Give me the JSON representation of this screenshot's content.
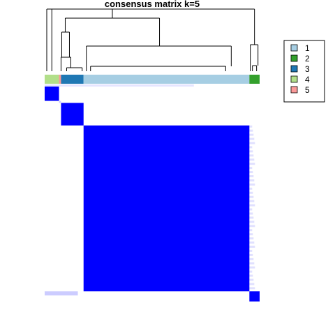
{
  "chart_data": {
    "type": "heatmap",
    "title": "consensus matrix k=5",
    "matrix_color": "#0000FF",
    "background_color": "#FFFFFF",
    "legend": {
      "placement": "right",
      "entries": [
        {
          "label": "1",
          "color": "#A6CEE3"
        },
        {
          "label": "2",
          "color": "#33A02C"
        },
        {
          "label": "3",
          "color": "#1F78B4"
        },
        {
          "label": "4",
          "color": "#B2DF8A"
        },
        {
          "label": "5",
          "color": "#FB9A99"
        }
      ]
    },
    "sample_order_classes": [
      "4",
      "5",
      "3",
      "1",
      "2"
    ],
    "class_sample_counts": [
      7,
      1,
      11,
      81,
      5
    ],
    "block_consensus": [
      {
        "class": "1",
        "value": 1.0
      },
      {
        "class": "2",
        "value": 1.0
      },
      {
        "class": "3",
        "value": 1.0
      },
      {
        "class": "4",
        "value": 1.0
      },
      {
        "class": "5",
        "value": 0.2
      }
    ],
    "off_block_consensus": 0.0
  }
}
